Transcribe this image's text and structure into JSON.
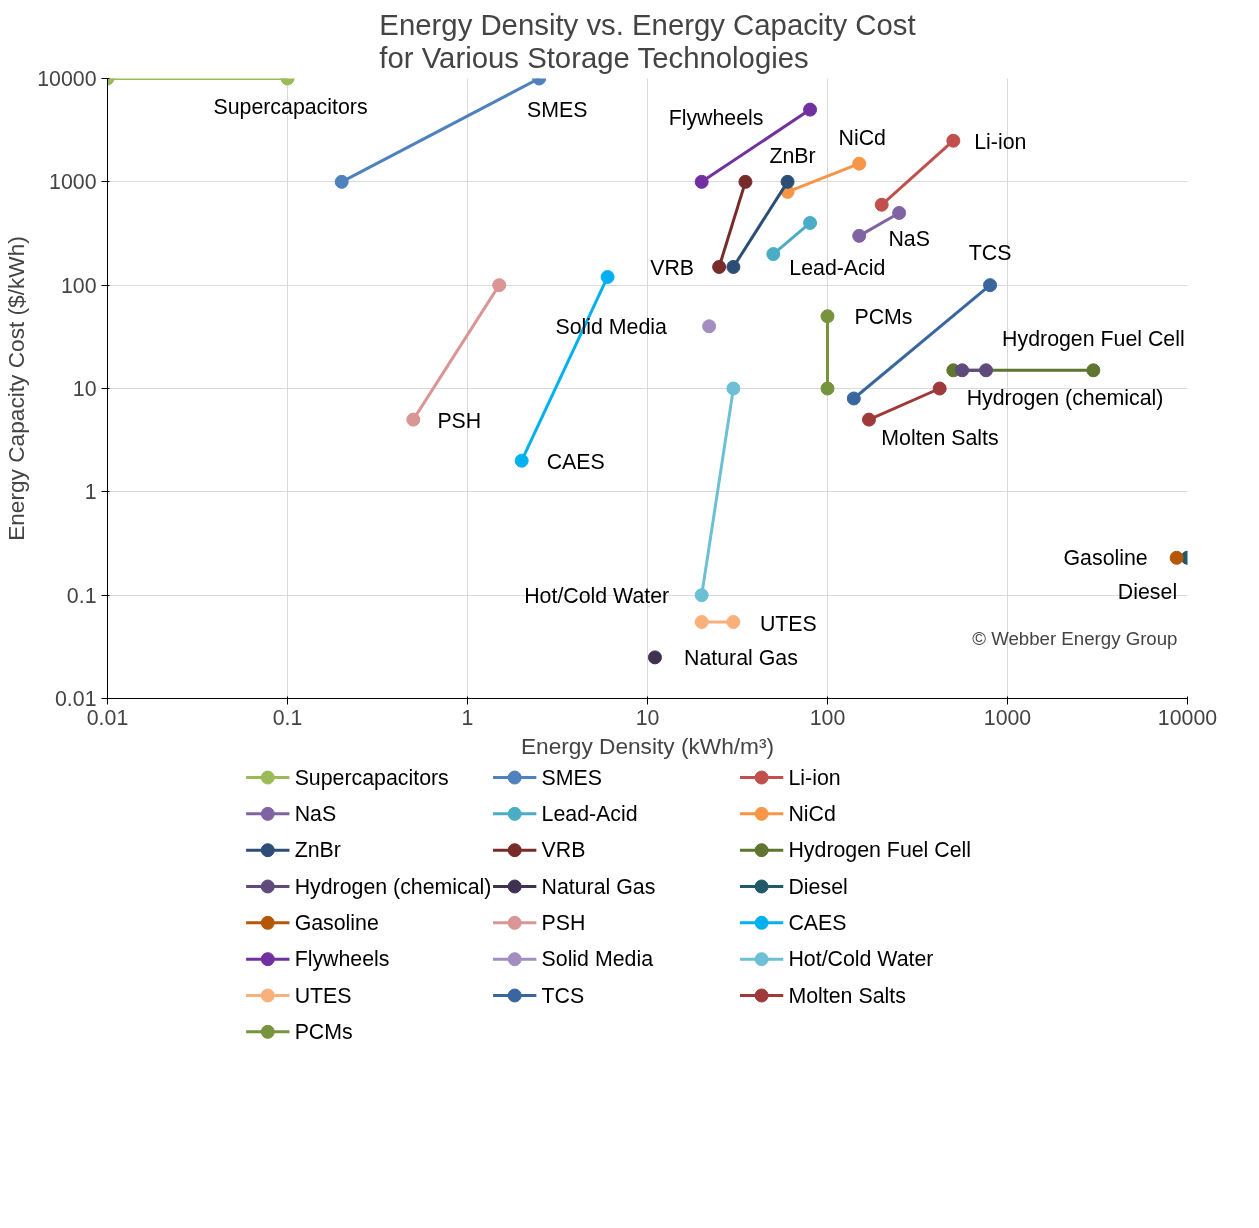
{
  "chart_data": {
    "type": "line",
    "title": "Energy Density vs. Energy Capacity Cost\nfor Various Storage Technologies",
    "xlabel": "Energy Density (kWh/m³)",
    "ylabel": "Energy Capacity Cost ($/kWh)",
    "log": "xy",
    "xlim": [
      0.01,
      10000
    ],
    "ylim": [
      0.01,
      10000
    ],
    "xticks": [
      0.01,
      0.1,
      1,
      10,
      100,
      1000,
      10000
    ],
    "yticks": [
      0.01,
      0.1,
      1,
      10,
      100,
      1000,
      10000
    ],
    "grid": true,
    "legend": "bottom",
    "marker": "circle",
    "line_style": "solid",
    "series": [
      {
        "name": "Supercapacitors",
        "color": "#9bbb59",
        "x": [
          0.01,
          0.1
        ],
        "values": [
          10000,
          10000
        ]
      },
      {
        "name": "SMES",
        "color": "#4f81bd",
        "x": [
          0.2,
          2.5
        ],
        "values": [
          1000,
          10000
        ]
      },
      {
        "name": "Li-ion",
        "color": "#c0504d",
        "x": [
          200,
          500
        ],
        "values": [
          600,
          2500
        ]
      },
      {
        "name": "NaS",
        "color": "#8064a2",
        "x": [
          150,
          250
        ],
        "values": [
          300,
          500
        ]
      },
      {
        "name": "Lead-Acid",
        "color": "#4bacc6",
        "x": [
          50,
          80
        ],
        "values": [
          200,
          400
        ]
      },
      {
        "name": "NiCd",
        "color": "#f79646",
        "x": [
          60,
          150
        ],
        "values": [
          800,
          1500
        ]
      },
      {
        "name": "ZnBr",
        "color": "#2c4d75",
        "x": [
          30,
          60
        ],
        "values": [
          150,
          1000
        ]
      },
      {
        "name": "VRB",
        "color": "#772c2a",
        "x": [
          25,
          35
        ],
        "values": [
          150,
          1000
        ]
      },
      {
        "name": "Hydrogen Fuel Cell",
        "color": "#5f7530",
        "x": [
          500,
          3000
        ],
        "values": [
          15,
          15
        ]
      },
      {
        "name": "Hydrogen (chemical)",
        "color": "#604a7b",
        "x": [
          560,
          760
        ],
        "values": [
          15,
          15
        ]
      },
      {
        "name": "Natural Gas",
        "color": "#403152",
        "x": [
          11
        ],
        "values": [
          0.025
        ]
      },
      {
        "name": "Diesel",
        "color": "#215968",
        "x": [
          10000
        ],
        "values": [
          0.23
        ]
      },
      {
        "name": "Gasoline",
        "color": "#b65708",
        "x": [
          8700
        ],
        "values": [
          0.23
        ]
      },
      {
        "name": "PSH",
        "color": "#d99694",
        "x": [
          0.5,
          1.5
        ],
        "values": [
          5,
          100
        ]
      },
      {
        "name": "CAES",
        "color": "#00b0f0",
        "x": [
          2,
          6
        ],
        "values": [
          2,
          120
        ]
      },
      {
        "name": "Flywheels",
        "color": "#7030a0",
        "x": [
          20,
          80
        ],
        "values": [
          1000,
          5000
        ]
      },
      {
        "name": "Solid Media",
        "color": "#a28fc0",
        "x": [
          22
        ],
        "values": [
          40
        ]
      },
      {
        "name": "Hot/Cold Water",
        "color": "#6dbfd4",
        "x": [
          20,
          30
        ],
        "values": [
          0.1,
          10
        ]
      },
      {
        "name": "UTES",
        "color": "#fab07a",
        "x": [
          20,
          30
        ],
        "values": [
          0.055,
          0.055
        ]
      },
      {
        "name": "TCS",
        "color": "#3a66a0",
        "x": [
          140,
          800
        ],
        "values": [
          8,
          100
        ]
      },
      {
        "name": "Molten Salts",
        "color": "#a0393a",
        "x": [
          170,
          420
        ],
        "values": [
          5,
          10
        ]
      },
      {
        "name": "PCMs",
        "color": "#77933c",
        "x": [
          100,
          100
        ],
        "values": [
          50,
          10
        ]
      }
    ],
    "annotations": [
      "© Webber Energy Group"
    ]
  }
}
